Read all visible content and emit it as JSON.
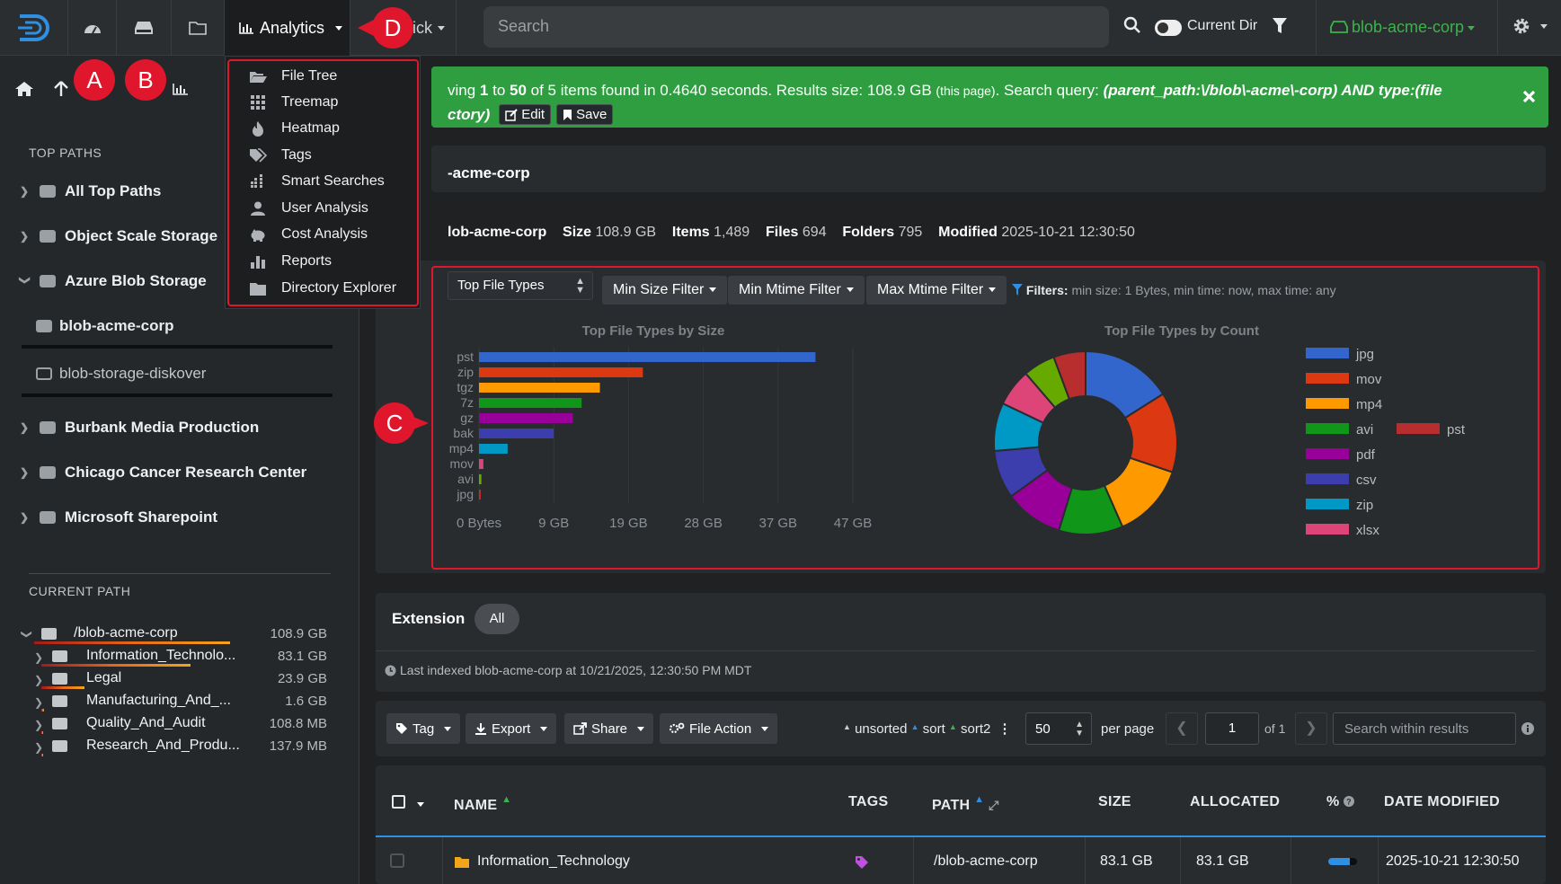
{
  "navbar": {
    "analytics_label": "Analytics",
    "quick_label": "ick",
    "search_placeholder": "Search",
    "current_dir_label": "Current Dir",
    "index_selector": "blob-acme-corp",
    "colors": {
      "accent_green": "#3cb34a",
      "annotation_red": "#e0172c"
    }
  },
  "annotations": {
    "a": "A",
    "b": "B",
    "c": "C",
    "d": "D"
  },
  "analytics_menu": [
    {
      "label": "File Tree",
      "icon": "folder-open-icon"
    },
    {
      "label": "Treemap",
      "icon": "grid-icon"
    },
    {
      "label": "Heatmap",
      "icon": "fire-icon"
    },
    {
      "label": "Tags",
      "icon": "tags-icon"
    },
    {
      "label": "Smart Searches",
      "icon": "list-icon"
    },
    {
      "label": "User Analysis",
      "icon": "user-icon"
    },
    {
      "label": "Cost Analysis",
      "icon": "piggy-bank-icon"
    },
    {
      "label": "Reports",
      "icon": "bar-chart-icon"
    },
    {
      "label": "Directory Explorer",
      "icon": "folder-icon"
    }
  ],
  "sidebar": {
    "top_paths_heading": "TOP PATHS",
    "top_paths": [
      {
        "label": "All Top Paths"
      },
      {
        "label": "Object Scale Storage"
      },
      {
        "label": "Azure Blob Storage"
      }
    ],
    "azure_children": [
      {
        "label": "blob-acme-corp"
      },
      {
        "label": "blob-storage-diskover"
      }
    ],
    "more_paths": [
      {
        "label": "Burbank Media Production"
      },
      {
        "label": "Chicago Cancer Research Center"
      },
      {
        "label": "Microsoft Sharepoint"
      }
    ],
    "current_path_heading": "CURRENT PATH",
    "current_path": [
      {
        "name": "/blob-acme-corp",
        "size": "108.9 GB",
        "usage": 1.0
      },
      {
        "name": "Information_Technolo...",
        "size": "83.1 GB",
        "usage": 0.763
      },
      {
        "name": "Legal",
        "size": "23.9 GB",
        "usage": 0.219
      },
      {
        "name": "Manufacturing_And_...",
        "size": "1.6 GB",
        "usage": 0.015
      },
      {
        "name": "Quality_And_Audit",
        "size": "108.8 MB",
        "usage": 0.001
      },
      {
        "name": "Research_And_Produ...",
        "size": "137.9 MB",
        "usage": 0.0013
      }
    ]
  },
  "banner": {
    "part1": "ving ",
    "from": "1",
    "to_word": " to ",
    "to": "50",
    "part2": " of 5 items found in 0.4640 seconds. Results size: 108.9 GB ",
    "this_page": "(this page)",
    "part3": ". Search query: ",
    "query_line1": "(parent_path:\\/blob\\-acme\\-corp) AND type:(file",
    "query_line2": "ctory)",
    "edit_label": "Edit",
    "save_label": "Save"
  },
  "path_header": "-acme-corp",
  "stats": {
    "name": "lob-acme-corp",
    "size_label": "Size",
    "size": "108.9 GB",
    "items_label": "Items",
    "items": "1,489",
    "files_label": "Files",
    "files": "694",
    "folders_label": "Folders",
    "folders": "795",
    "modified_label": "Modified",
    "modified": "2025-10-21 12:30:50"
  },
  "chart_controls": {
    "type_select": "Top File Types",
    "min_size": "Min Size Filter",
    "min_mtime": "Min Mtime Filter",
    "max_mtime": "Max Mtime Filter",
    "filters_label": "Filters:",
    "filters_text": "min size: 1 Bytes, min time: now, max time: any"
  },
  "chart_data": [
    {
      "type": "bar",
      "orientation": "horizontal",
      "title": "Top File Types by Size",
      "categories": [
        "pst",
        "zip",
        "tgz",
        "7z",
        "gz",
        "bak",
        "mp4",
        "mov",
        "avi",
        "jpg"
      ],
      "values": [
        42.3,
        20.6,
        15.2,
        12.9,
        11.8,
        9.4,
        3.6,
        0.55,
        0.3,
        0.2
      ],
      "colors": [
        "#3366cc",
        "#dc3912",
        "#ff9900",
        "#109618",
        "#990099",
        "#3b3eac",
        "#0099c6",
        "#dd4477",
        "#66aa00",
        "#b82e2e"
      ],
      "x_ticks": [
        "0 Bytes",
        "9 GB",
        "19 GB",
        "28 GB",
        "37 GB",
        "47 GB"
      ],
      "xlim": [
        0,
        47
      ],
      "unit": "GB",
      "grid": true
    },
    {
      "type": "pie",
      "donut": true,
      "title": "Top File Types by Count",
      "labels": [
        "jpg",
        "mov",
        "mp4",
        "avi",
        "pdf",
        "csv",
        "zip",
        "xlsx",
        "pst"
      ],
      "values": [
        17,
        15,
        14,
        12,
        11,
        9,
        9,
        7,
        6
      ],
      "colors": [
        "#3366cc",
        "#dc3912",
        "#ff9900",
        "#109618",
        "#990099",
        "#3b3eac",
        "#0099c6",
        "#dd4477",
        "#b82e2e"
      ],
      "extra_slice_color": "#66aa00",
      "extra_slice_value": 6,
      "legend_position": "right"
    }
  ],
  "extension": {
    "label": "Extension",
    "filter": "All"
  },
  "last_indexed": "Last indexed blob-acme-corp at 10/21/2025, 12:30:50 PM MDT",
  "toolbar": {
    "tag": "Tag",
    "export": "Export",
    "share": "Share",
    "file_action": "File Action",
    "unsorted": "unsorted",
    "sort": "sort",
    "sort2": "sort2",
    "per_page_value": "50",
    "per_page_label": "per page",
    "page_value": "1",
    "of_pages": "of 1",
    "search_placeholder": "Search within results"
  },
  "table": {
    "headers": {
      "name": "NAME",
      "tags": "TAGS",
      "path": "PATH",
      "size": "SIZE",
      "allocated": "ALLOCATED",
      "pct": "%",
      "modified": "DATE MODIFIED"
    },
    "rows": [
      {
        "name": "Information_Technology",
        "path": "/blob-acme-corp",
        "size": "83.1 GB",
        "allocated": "83.1 GB",
        "pct": 0.763,
        "modified": "2025-10-21 12:30:50"
      }
    ]
  }
}
